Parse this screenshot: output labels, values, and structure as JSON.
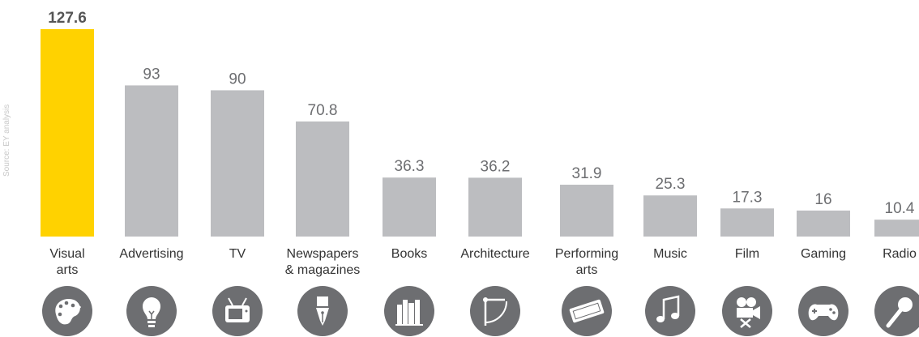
{
  "source_note": "Source: EY analysis",
  "colors": {
    "bar": "#bcbdc0",
    "highlight": "#ffd200",
    "icon_circle": "#6d6e71",
    "icon_glyph": "#ffffff"
  },
  "chart_data": {
    "type": "bar",
    "title": "",
    "xlabel": "",
    "ylabel": "",
    "ylim": [
      0,
      127.6
    ],
    "grid": false,
    "categories": [
      [
        "Visual",
        "arts"
      ],
      [
        "Advertising"
      ],
      [
        "TV"
      ],
      [
        "Newspapers",
        "& magazines"
      ],
      [
        "Books"
      ],
      [
        "Architecture"
      ],
      [
        "Performing",
        "arts"
      ],
      [
        "Music"
      ],
      [
        "Film"
      ],
      [
        "Gaming"
      ],
      [
        "Radio"
      ]
    ],
    "values": [
      127.6,
      93,
      90,
      70.8,
      36.3,
      36.2,
      31.9,
      25.3,
      17.3,
      16,
      10.4
    ],
    "value_labels": [
      "127.6",
      "93",
      "90",
      "70.8",
      "36.3",
      "36.2",
      "31.9",
      "25.3",
      "17.3",
      "16",
      "10.4"
    ],
    "highlight_index": 0,
    "icons": [
      "palette-icon",
      "lightbulb-icon",
      "tv-icon",
      "pen-nib-icon",
      "books-icon",
      "compass-icon",
      "ticket-icon",
      "music-notes-icon",
      "film-camera-icon",
      "gamepad-icon",
      "microphone-icon"
    ]
  }
}
